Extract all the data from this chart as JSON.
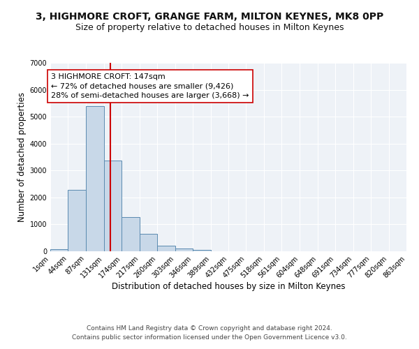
{
  "title_line1": "3, HIGHMORE CROFT, GRANGE FARM, MILTON KEYNES, MK8 0PP",
  "title_line2": "Size of property relative to detached houses in Milton Keynes",
  "xlabel": "Distribution of detached houses by size in Milton Keynes",
  "ylabel": "Number of detached properties",
  "footer_line1": "Contains HM Land Registry data © Crown copyright and database right 2024.",
  "footer_line2": "Contains public sector information licensed under the Open Government Licence v3.0.",
  "annotation_line1": "3 HIGHMORE CROFT: 147sqm",
  "annotation_line2": "← 72% of detached houses are smaller (9,426)",
  "annotation_line3": "28% of semi-detached houses are larger (3,668) →",
  "bar_color": "#c8d8e8",
  "bar_edge_color": "#5a8ab0",
  "vline_color": "#cc0000",
  "vline_x": 147,
  "bin_edges": [
    1,
    44,
    87,
    131,
    174,
    217,
    260,
    303,
    346,
    389,
    432,
    475,
    518,
    561,
    604,
    648,
    691,
    734,
    777,
    820,
    863
  ],
  "bar_heights": [
    75,
    2275,
    5400,
    3375,
    1275,
    650,
    200,
    100,
    60,
    10,
    5,
    0,
    0,
    0,
    0,
    0,
    0,
    0,
    0,
    0
  ],
  "ylim": [
    0,
    7000
  ],
  "yticks": [
    0,
    1000,
    2000,
    3000,
    4000,
    5000,
    6000,
    7000
  ],
  "background_color": "#eef2f7",
  "grid_color": "#ffffff",
  "title_fontsize": 10,
  "subtitle_fontsize": 9,
  "axis_label_fontsize": 8.5,
  "tick_fontsize": 7,
  "annotation_fontsize": 8,
  "footer_fontsize": 6.5
}
